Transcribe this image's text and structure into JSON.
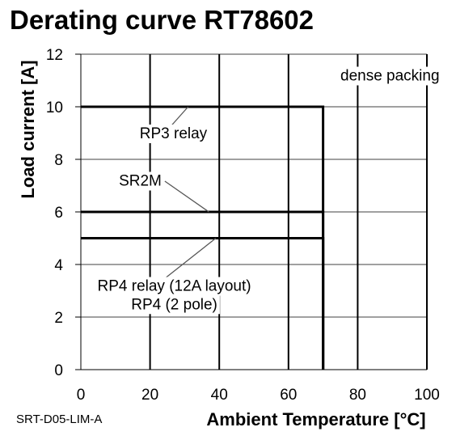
{
  "chart_data": {
    "type": "line",
    "title": "Derating curve RT78602",
    "footer_code": "SRT-D05-LIM-A",
    "xlabel": "Ambient Temperature [°C]",
    "ylabel": "Load current [A]",
    "xlim": [
      0,
      100
    ],
    "ylim": [
      0,
      12
    ],
    "xticks": [
      0,
      20,
      40,
      60,
      80,
      100
    ],
    "yticks": [
      0,
      2,
      4,
      6,
      8,
      10,
      12
    ],
    "grid": true,
    "series_color": "#000000",
    "series": [
      {
        "name": "RP3 relay",
        "x": [
          0,
          70,
          70
        ],
        "y": [
          10,
          10,
          0
        ]
      },
      {
        "name": "SR2M",
        "x": [
          0,
          70,
          70
        ],
        "y": [
          6,
          6,
          0
        ]
      },
      {
        "name": "RP4 relay (12A layout)",
        "x": [
          0,
          70,
          70
        ],
        "y": [
          5,
          5,
          0
        ]
      },
      {
        "name": "RP4 (2 pole)",
        "x": [
          0,
          70,
          70
        ],
        "y": [
          5,
          5,
          0
        ]
      }
    ],
    "annotations": [
      {
        "text": "dense packing",
        "x": 75,
        "y": 11
      },
      {
        "text": "RP3 relay",
        "x": 17,
        "y": 8.8,
        "point_x": 31,
        "point_y": 10
      },
      {
        "text": "SR2M",
        "x": 11,
        "y": 7,
        "point_x": 37,
        "point_y": 6
      },
      {
        "text": "RP4 relay (12A layout)",
        "x": 27,
        "y": 3,
        "point_x": 39,
        "point_y": 5
      },
      {
        "text": "RP4 (2 pole)",
        "x": 27,
        "y": 2.3
      }
    ]
  }
}
